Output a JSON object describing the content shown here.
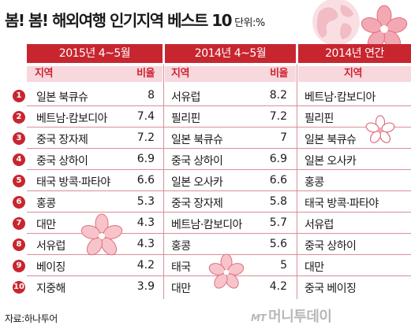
{
  "title": "봄! 봄! 해외여행 인기지역 베스트 10",
  "unit": "단위:%",
  "columns": [
    {
      "header": "2015년 4~5월",
      "sub_region": "지역",
      "sub_ratio": "비율"
    },
    {
      "header": "2014년 4~5월",
      "sub_region": "지역",
      "sub_ratio": "비율"
    },
    {
      "header": "2014년 연간",
      "sub_region": "지역"
    }
  ],
  "rows": [
    {
      "rank": "1",
      "a_region": "일본 북큐슈",
      "a_ratio": "8",
      "b_region": "서유럽",
      "b_ratio": "8.2",
      "c_region": "베트남·캄보디아"
    },
    {
      "rank": "2",
      "a_region": "베트남·캄보디아",
      "a_ratio": "7.4",
      "b_region": "필리핀",
      "b_ratio": "7.2",
      "c_region": "필리핀"
    },
    {
      "rank": "3",
      "a_region": "중국 장자제",
      "a_ratio": "7.2",
      "b_region": "일본 북큐슈",
      "b_ratio": "7",
      "c_region": "일본 북큐슈"
    },
    {
      "rank": "4",
      "a_region": "중국 상하이",
      "a_ratio": "6.9",
      "b_region": "중국 상하이",
      "b_ratio": "6.9",
      "c_region": "일본 오사카"
    },
    {
      "rank": "5",
      "a_region": "태국 방콕·파타야",
      "a_ratio": "6.6",
      "b_region": "일본 오사카",
      "b_ratio": "6.6",
      "c_region": "홍콩"
    },
    {
      "rank": "6",
      "a_region": "홍콩",
      "a_ratio": "5.3",
      "b_region": "중국 장자제",
      "b_ratio": "5.8",
      "c_region": "태국 방콕·파타야"
    },
    {
      "rank": "7",
      "a_region": "대만",
      "a_ratio": "4.3",
      "b_region": "베트남·캄보디아",
      "b_ratio": "5.7",
      "c_region": "서유럽"
    },
    {
      "rank": "8",
      "a_region": "서유럽",
      "a_ratio": "4.3",
      "b_region": "홍콩",
      "b_ratio": "5.6",
      "c_region": "중국 상하이"
    },
    {
      "rank": "9",
      "a_region": "베이징",
      "a_ratio": "4.2",
      "b_region": "태국",
      "b_ratio": "5",
      "c_region": "대만"
    },
    {
      "rank": "10",
      "a_region": "지중해",
      "a_ratio": "3.9",
      "b_region": "대만",
      "b_ratio": "4.2",
      "c_region": "중국 베이징"
    }
  ],
  "source": "자료:하나투어",
  "brand_prefix": "MT",
  "brand": "머니투데이",
  "colors": {
    "accent": "#c8262f",
    "sub_bg": "#f6d8dd",
    "flower": "#f3a9b3"
  }
}
